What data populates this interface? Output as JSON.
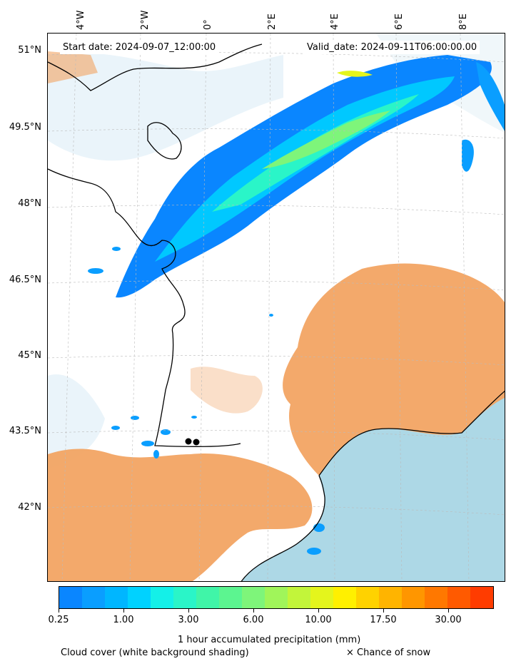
{
  "map": {
    "start_date": "Start date: 2024-09-07_12:00:00",
    "valid_date": "Valid_date: 2024-09-11T06:00:00.00",
    "lat_labels": [
      "51°N",
      "49.5°N",
      "48°N",
      "46.5°N",
      "45°N",
      "43.5°N",
      "42°N"
    ],
    "lon_labels": [
      "4°W",
      "2°W",
      "0°",
      "2°E",
      "4°E",
      "6°E",
      "8°E"
    ]
  },
  "colorbar": {
    "ticks": [
      "0.25",
      "1.00",
      "3.00",
      "6.00",
      "10.00",
      "17.50",
      "30.00"
    ],
    "colors": [
      "#0a86ff",
      "#0a9eff",
      "#00b6ff",
      "#00d2ff",
      "#14f0e8",
      "#2af5c8",
      "#40f5a8",
      "#5cf590",
      "#7ef57a",
      "#a0f55a",
      "#c2f53a",
      "#e4f51c",
      "#fff000",
      "#ffd200",
      "#ffb400",
      "#ff9600",
      "#ff7800",
      "#ff5a00",
      "#ff3c00"
    ],
    "label": "1 hour accumulated precipitation (mm)"
  },
  "legend": {
    "cloud_cover": "Cloud cover (white background shading)",
    "snow": "× Chance of snow"
  },
  "colors": {
    "land_orange": "#f2a463",
    "sea": "#add8e6",
    "light_cloud": "#e6f2f8",
    "coast": "#000000"
  }
}
